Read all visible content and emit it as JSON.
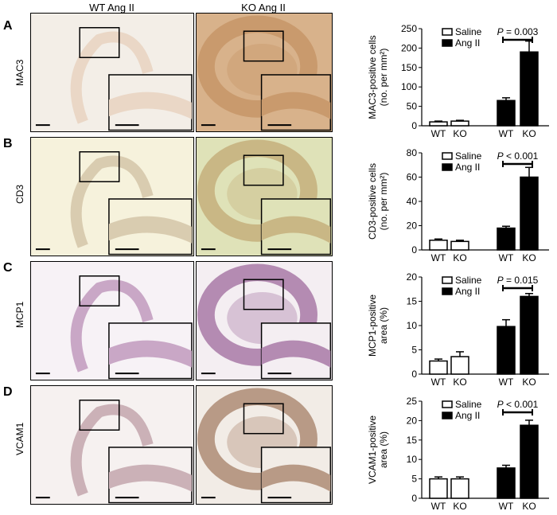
{
  "figure": {
    "column_headers": [
      "WT Ang II",
      "KO Ang II"
    ],
    "rows": [
      {
        "letter": "A",
        "marker": "MAC3",
        "tissue": "#ead7c6",
        "tissue_ko": "#c99a6d",
        "bg": "#f3eee7",
        "bg_ko": "#d8b28b"
      },
      {
        "letter": "B",
        "marker": "CD3",
        "tissue": "#d9ccb0",
        "tissue_ko": "#c9b785",
        "bg": "#f6f2dc",
        "bg_ko": "#dfe2b8"
      },
      {
        "letter": "C",
        "marker": "MCP1",
        "tissue": "#c9a7c6",
        "tissue_ko": "#b48bb2",
        "bg": "#f7f2f6",
        "bg_ko": "#f4eef2"
      },
      {
        "letter": "D",
        "marker": "VCAM1",
        "tissue": "#cbb1b7",
        "tissue_ko": "#b89a86",
        "bg": "#f6f1f0",
        "bg_ko": "#f2ece6"
      }
    ]
  },
  "chart_data": [
    {
      "type": "bar",
      "ylabel_lines": [
        "MAC3-positive cells",
        "(no. per mm²)"
      ],
      "ylim": [
        0,
        250
      ],
      "yticks": [
        0,
        50,
        100,
        150,
        200,
        250
      ],
      "categories": [
        "WT",
        "KO",
        "WT",
        "KO"
      ],
      "values": [
        10,
        12,
        65,
        190
      ],
      "errors": [
        2,
        2,
        7,
        28
      ],
      "fills": [
        "saline",
        "saline",
        "angii",
        "angii"
      ],
      "legend": [
        "Saline",
        "Ang II"
      ],
      "pvalue": "P = 0.003"
    },
    {
      "type": "bar",
      "ylabel_lines": [
        "CD3-positive cells",
        "(no. per mm²)"
      ],
      "ylim": [
        0,
        80
      ],
      "yticks": [
        0,
        20,
        40,
        60,
        80
      ],
      "categories": [
        "WT",
        "KO",
        "WT",
        "KO"
      ],
      "values": [
        8,
        7,
        18,
        60
      ],
      "errors": [
        1,
        1,
        1.5,
        8
      ],
      "fills": [
        "saline",
        "saline",
        "angii",
        "angii"
      ],
      "legend": [
        "Saline",
        "Ang II"
      ],
      "pvalue": "P < 0.001"
    },
    {
      "type": "bar",
      "ylabel_lines": [
        "MCP1-positive",
        "area (%)"
      ],
      "ylim": [
        0,
        20
      ],
      "yticks": [
        0,
        5,
        10,
        15,
        20
      ],
      "categories": [
        "WT",
        "KO",
        "WT",
        "KO"
      ],
      "values": [
        2.7,
        3.6,
        9.8,
        16
      ],
      "errors": [
        0.4,
        1.0,
        1.4,
        0.6
      ],
      "fills": [
        "saline",
        "saline",
        "angii",
        "angii"
      ],
      "legend": [
        "Saline",
        "Ang II"
      ],
      "pvalue": "P = 0.015"
    },
    {
      "type": "bar",
      "ylabel_lines": [
        "VCAM1-positive",
        "area (%)"
      ],
      "ylim": [
        0,
        25
      ],
      "yticks": [
        0,
        5,
        10,
        15,
        20,
        25
      ],
      "categories": [
        "WT",
        "KO",
        "WT",
        "KO"
      ],
      "values": [
        5,
        5,
        7.8,
        18.8
      ],
      "errors": [
        0.5,
        0.5,
        0.7,
        1.3
      ],
      "fills": [
        "saline",
        "saline",
        "angii",
        "angii"
      ],
      "legend": [
        "Saline",
        "Ang II"
      ],
      "pvalue": "P < 0.001"
    }
  ]
}
